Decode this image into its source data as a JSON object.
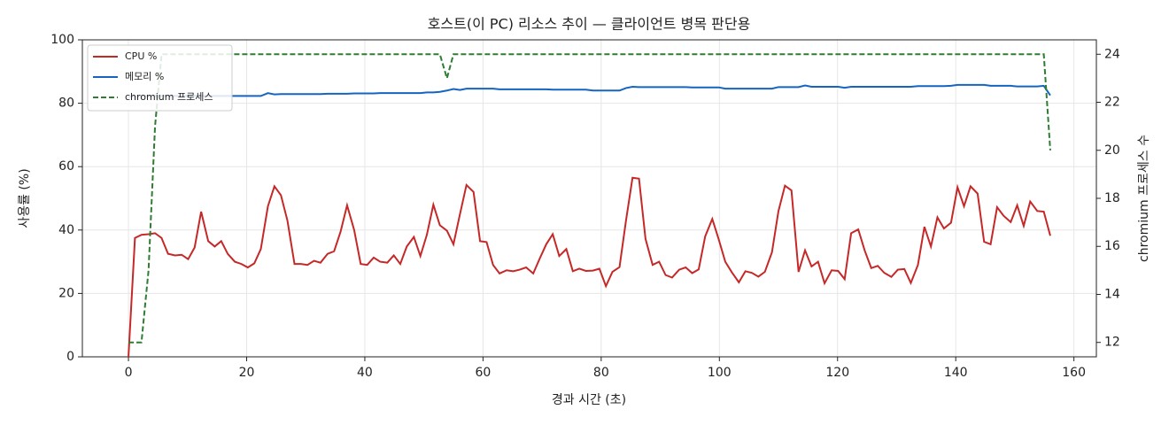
{
  "chart_data": {
    "type": "line",
    "title": "호스트(이 PC) 리소스 추이 — 클라이언트 병목 판단용",
    "xlabel": "경과 시간 (초)",
    "ylabel": "사용률 (%)",
    "y2label": "chromium 프로세스 수",
    "x": [
      0,
      1.1,
      2.2,
      3.4,
      4.5,
      5.6,
      6.7,
      7.9,
      9.0,
      10.1,
      11.2,
      12.3,
      13.5,
      14.6,
      15.7,
      16.8,
      18.0,
      19.1,
      20.2,
      21.3,
      22.4,
      23.6,
      24.7,
      25.8,
      26.9,
      28.1,
      29.2,
      30.3,
      31.4,
      32.5,
      33.7,
      34.8,
      35.9,
      37.0,
      38.2,
      39.3,
      40.4,
      41.5,
      42.6,
      43.8,
      44.9,
      46.0,
      47.1,
      48.3,
      49.4,
      50.5,
      51.6,
      52.7,
      53.9,
      55.0,
      56.1,
      57.2,
      58.4,
      59.5,
      60.6,
      61.7,
      62.8,
      64.0,
      65.1,
      66.2,
      67.3,
      68.5,
      69.6,
      70.7,
      71.8,
      72.9,
      74.1,
      75.2,
      76.3,
      77.4,
      78.6,
      79.7,
      80.8,
      81.9,
      83.1,
      84.2,
      85.3,
      86.4,
      87.5,
      88.7,
      89.8,
      90.9,
      92.0,
      93.2,
      94.3,
      95.4,
      96.5,
      97.6,
      98.8,
      99.9,
      101.0,
      102.1,
      103.3,
      104.4,
      105.5,
      106.6,
      107.7,
      108.9,
      110.0,
      111.1,
      112.2,
      113.4,
      114.5,
      115.6,
      116.7,
      117.8,
      119.0,
      120.1,
      121.2,
      122.3,
      123.5,
      124.6,
      125.7,
      126.8,
      127.9,
      129.1,
      130.2,
      131.3,
      132.4,
      133.6,
      134.7,
      135.8,
      136.9,
      138.0,
      139.2,
      140.3,
      141.4,
      142.5,
      143.7,
      144.8,
      145.9,
      147.0,
      148.1,
      149.3,
      150.4,
      151.5,
      152.6,
      153.8,
      154.9,
      156.0
    ],
    "series": [
      {
        "name": "CPU %",
        "color": "#c62828",
        "dashed": false,
        "values": [
          0,
          37.5,
          38.5,
          38.7,
          39,
          37.5,
          32.5,
          32,
          32.2,
          30.8,
          34.5,
          45.8,
          36.5,
          34.8,
          36.5,
          32.5,
          30,
          29.3,
          28.2,
          29.5,
          34,
          47.5,
          53.8,
          51,
          43,
          29.3,
          29.3,
          29,
          30.3,
          29.7,
          32.5,
          33.3,
          39.5,
          47.8,
          40,
          29.3,
          29,
          31.3,
          30,
          29.7,
          32,
          29.3,
          34.8,
          37.8,
          31.8,
          38.5,
          48,
          41.5,
          39.8,
          35.5,
          45,
          54.2,
          52,
          36.5,
          36.2,
          29,
          26.3,
          27.3,
          27,
          27.5,
          28.2,
          26.3,
          31,
          35.5,
          38.7,
          31.8,
          34,
          27,
          27.8,
          27.1,
          27.2,
          27.8,
          22.3,
          26.8,
          28.3,
          43,
          56.5,
          56.2,
          37.2,
          29,
          30,
          25.8,
          25,
          27.5,
          28.2,
          26.4,
          27.6,
          38,
          43.5,
          37,
          30,
          26.7,
          23.5,
          27,
          26.5,
          25.3,
          26.8,
          33,
          46,
          54,
          52.5,
          26.8,
          33.6,
          28.5,
          30,
          23.2,
          27.3,
          27.1,
          24.5,
          39,
          40.2,
          33.5,
          28,
          28.7,
          26.5,
          25.2,
          27.5,
          27.7,
          23.3,
          29,
          41,
          34.8,
          44,
          40.5,
          42.3,
          53.5,
          47.5,
          53.8,
          51.5,
          36.3,
          35.5,
          47.2,
          44.5,
          42.5,
          47.8,
          41.3,
          49,
          46,
          45.8,
          38.2
        ]
      },
      {
        "name": "메모리 %",
        "color": "#1565c0",
        "dashed": false,
        "values": [
          82.0,
          82.2,
          82.3,
          82.3,
          82.3,
          82.3,
          82.3,
          82.3,
          82.3,
          82.3,
          82.3,
          82.3,
          82.3,
          82.3,
          82.3,
          82.3,
          82.3,
          82.3,
          82.3,
          82.3,
          82.3,
          83.2,
          82.8,
          82.9,
          82.9,
          82.9,
          82.9,
          82.9,
          82.9,
          82.9,
          83.0,
          83.0,
          83.0,
          83.0,
          83.1,
          83.1,
          83.1,
          83.1,
          83.2,
          83.2,
          83.2,
          83.2,
          83.2,
          83.2,
          83.2,
          83.4,
          83.4,
          83.6,
          84.0,
          84.5,
          84.2,
          84.6,
          84.6,
          84.6,
          84.6,
          84.6,
          84.4,
          84.4,
          84.4,
          84.4,
          84.4,
          84.4,
          84.4,
          84.4,
          84.3,
          84.3,
          84.3,
          84.3,
          84.3,
          84.3,
          84.0,
          84.0,
          84.0,
          84.0,
          84.0,
          84.8,
          85.2,
          85.1,
          85.1,
          85.1,
          85.1,
          85.1,
          85.1,
          85.1,
          85.1,
          85.0,
          85.0,
          85.0,
          85.0,
          85.0,
          84.6,
          84.6,
          84.6,
          84.6,
          84.6,
          84.6,
          84.6,
          84.6,
          85.1,
          85.1,
          85.1,
          85.1,
          85.6,
          85.2,
          85.2,
          85.2,
          85.2,
          85.2,
          84.9,
          85.2,
          85.2,
          85.2,
          85.2,
          85.2,
          85.2,
          85.2,
          85.2,
          85.2,
          85.2,
          85.4,
          85.4,
          85.4,
          85.4,
          85.4,
          85.5,
          85.8,
          85.8,
          85.8,
          85.8,
          85.8,
          85.5,
          85.5,
          85.5,
          85.5,
          85.3,
          85.3,
          85.3,
          85.3,
          85.5,
          82.5
        ]
      },
      {
        "name": "chromium 프로세스",
        "color": "#2e7d32",
        "dashed": true,
        "axis": "y2",
        "values": [
          12,
          12,
          12,
          15,
          21,
          24,
          24,
          24,
          24,
          24,
          24,
          24,
          24,
          24,
          24,
          24,
          24,
          24,
          24,
          24,
          24,
          24,
          24,
          24,
          24,
          24,
          24,
          24,
          24,
          24,
          24,
          24,
          24,
          24,
          24,
          24,
          24,
          24,
          24,
          24,
          24,
          24,
          24,
          24,
          24,
          24,
          24,
          24,
          23,
          24,
          24,
          24,
          24,
          24,
          24,
          24,
          24,
          24,
          24,
          24,
          24,
          24,
          24,
          24,
          24,
          24,
          24,
          24,
          24,
          24,
          24,
          24,
          24,
          24,
          24,
          24,
          24,
          24,
          24,
          24,
          24,
          24,
          24,
          24,
          24,
          24,
          24,
          24,
          24,
          24,
          24,
          24,
          24,
          24,
          24,
          24,
          24,
          24,
          24,
          24,
          24,
          24,
          24,
          24,
          24,
          24,
          24,
          24,
          24,
          24,
          24,
          24,
          24,
          24,
          24,
          24,
          24,
          24,
          24,
          24,
          24,
          24,
          24,
          24,
          24,
          24,
          24,
          24,
          24,
          24,
          24,
          24,
          24,
          24,
          24,
          24,
          24,
          24,
          24,
          20
        ]
      }
    ],
    "xlim": [
      -7.8,
      163.8
    ],
    "xticks": [
      0,
      20,
      40,
      60,
      80,
      100,
      120,
      140,
      160
    ],
    "ylim": [
      0,
      100
    ],
    "yticks": [
      0,
      20,
      40,
      60,
      80,
      100
    ],
    "y2lim": [
      11.4,
      24.6
    ],
    "y2ticks": [
      12,
      14,
      16,
      18,
      20,
      22,
      24
    ],
    "grid": true,
    "legend": "upper-left"
  }
}
